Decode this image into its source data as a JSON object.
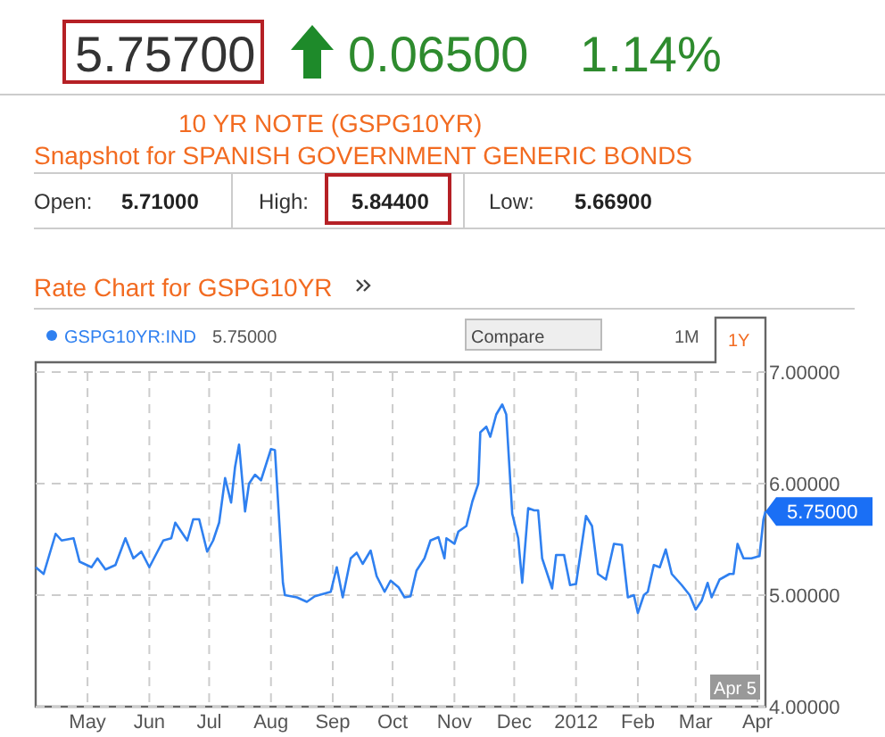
{
  "chart_data": {
    "type": "line",
    "title": "10 YR NOTE (GSPG10YR)",
    "subtitle": "Snapshot for SPANISH GOVERNMENT GENERIC BONDS",
    "annotations": [
      "5.75700",
      "0.06500",
      "1.14%",
      "Open:",
      "5.71000",
      "High:",
      "5.84400",
      "Low:",
      "5.66900",
      "Rate Chart for GSPG10YR",
      "Compare",
      "1M",
      "1Y",
      "5.75000",
      {
        "text": "5.75000",
        "x": "2012-04-05",
        "y": 5.75
      },
      "Apr 5"
    ],
    "x": [
      "2011-04-05",
      "2011-04-09",
      "2011-04-15",
      "2011-04-18",
      "2011-04-24",
      "2011-04-27",
      "2011-05-03",
      "2011-05-06",
      "2011-05-10",
      "2011-05-15",
      "2011-05-20",
      "2011-05-24",
      "2011-05-28",
      "2011-06-01",
      "2011-06-08",
      "2011-06-12",
      "2011-06-14",
      "2011-06-20",
      "2011-06-23",
      "2011-06-26",
      "2011-06-30",
      "2011-07-03",
      "2011-07-06",
      "2011-07-09",
      "2011-07-12",
      "2011-07-14",
      "2011-07-16",
      "2011-07-19",
      "2011-07-21",
      "2011-07-24",
      "2011-07-27",
      "2011-08-01",
      "2011-08-03",
      "2011-08-07",
      "2011-08-08",
      "2011-08-14",
      "2011-08-19",
      "2011-08-23",
      "2011-08-31",
      "2011-09-03",
      "2011-09-06",
      "2011-09-10",
      "2011-09-13",
      "2011-09-16",
      "2011-09-20",
      "2011-09-23",
      "2011-09-27",
      "2011-09-30",
      "2011-10-04",
      "2011-10-07",
      "2011-10-10",
      "2011-10-13",
      "2011-10-17",
      "2011-10-20",
      "2011-10-24",
      "2011-10-27",
      "2011-10-28",
      "2011-11-01",
      "2011-11-03",
      "2011-11-07",
      "2011-11-10",
      "2011-11-13",
      "2011-11-14",
      "2011-11-17",
      "2011-11-19",
      "2011-11-22",
      "2011-11-25",
      "2011-11-27",
      "2011-11-30",
      "2011-12-03",
      "2011-12-05",
      "2011-12-08",
      "2011-12-11",
      "2011-12-13",
      "2011-12-15",
      "2011-12-20",
      "2011-12-22",
      "2011-12-26",
      "2011-12-29",
      "2012-01-01",
      "2012-01-06",
      "2012-01-09",
      "2012-01-12",
      "2012-01-16",
      "2012-01-20",
      "2012-01-24",
      "2012-01-27",
      "2012-01-30",
      "2012-02-01",
      "2012-02-04",
      "2012-02-06",
      "2012-02-09",
      "2012-02-12",
      "2012-02-15",
      "2012-02-18",
      "2012-02-23",
      "2012-02-27",
      "2012-03-01",
      "2012-03-04",
      "2012-03-07",
      "2012-03-09",
      "2012-03-13",
      "2012-03-18",
      "2012-03-20",
      "2012-03-22",
      "2012-03-25",
      "2012-03-29",
      "2012-04-02",
      "2012-04-04",
      "2012-04-05"
    ],
    "series": [
      {
        "name": "GSPG10YR:IND",
        "color": "#2f80f0",
        "values": [
          5.25,
          5.19,
          5.55,
          5.49,
          5.51,
          5.3,
          5.25,
          5.33,
          5.23,
          5.27,
          5.51,
          5.33,
          5.39,
          5.25,
          5.49,
          5.51,
          5.65,
          5.49,
          5.68,
          5.68,
          5.39,
          5.49,
          5.65,
          6.05,
          5.83,
          6.15,
          6.35,
          5.75,
          6.0,
          6.08,
          6.03,
          6.31,
          6.3,
          5.11,
          5.0,
          4.98,
          4.94,
          4.99,
          5.03,
          5.25,
          4.98,
          5.33,
          5.38,
          5.28,
          5.4,
          5.17,
          5.03,
          5.13,
          5.07,
          4.98,
          4.99,
          5.22,
          5.33,
          5.49,
          5.52,
          5.33,
          5.51,
          5.46,
          5.57,
          5.62,
          5.84,
          6.0,
          6.46,
          6.51,
          6.42,
          6.62,
          6.71,
          6.62,
          5.73,
          5.51,
          5.11,
          5.78,
          5.76,
          5.76,
          5.33,
          5.06,
          5.36,
          5.36,
          5.09,
          5.1,
          5.71,
          5.62,
          5.19,
          5.14,
          5.46,
          5.45,
          4.98,
          5.0,
          4.84,
          5.0,
          5.03,
          5.27,
          5.25,
          5.41,
          5.19,
          5.09,
          5.0,
          4.87,
          4.95,
          5.11,
          4.98,
          5.14,
          5.19,
          5.19,
          5.46,
          5.33,
          5.33,
          5.35,
          5.68,
          5.75
        ]
      }
    ],
    "xlim": [
      "2011-04-05",
      "2012-04-05"
    ],
    "xticks": [
      {
        "value": "2011-05-01",
        "label": "May"
      },
      {
        "value": "2011-06-01",
        "label": "Jun"
      },
      {
        "value": "2011-07-01",
        "label": "Jul"
      },
      {
        "value": "2011-08-01",
        "label": "Aug"
      },
      {
        "value": "2011-09-01",
        "label": "Sep"
      },
      {
        "value": "2011-10-01",
        "label": "Oct"
      },
      {
        "value": "2011-11-01",
        "label": "Nov"
      },
      {
        "value": "2011-12-01",
        "label": "Dec"
      },
      {
        "value": "2012-01-01",
        "label": "2012"
      },
      {
        "value": "2012-02-01",
        "label": "Feb"
      },
      {
        "value": "2012-03-01",
        "label": "Mar"
      },
      {
        "value": "2012-04-01",
        "label": "Apr"
      }
    ],
    "ylim": [
      4,
      7
    ],
    "yticks": [
      {
        "value": 4,
        "label": "4.00000"
      },
      {
        "value": 5,
        "label": "5.00000"
      },
      {
        "value": 6,
        "label": "6.00000"
      },
      {
        "value": 7,
        "label": "7.00000"
      }
    ],
    "grid": true,
    "legend": "top left",
    "line_style": "solid",
    "marker": "none"
  }
}
